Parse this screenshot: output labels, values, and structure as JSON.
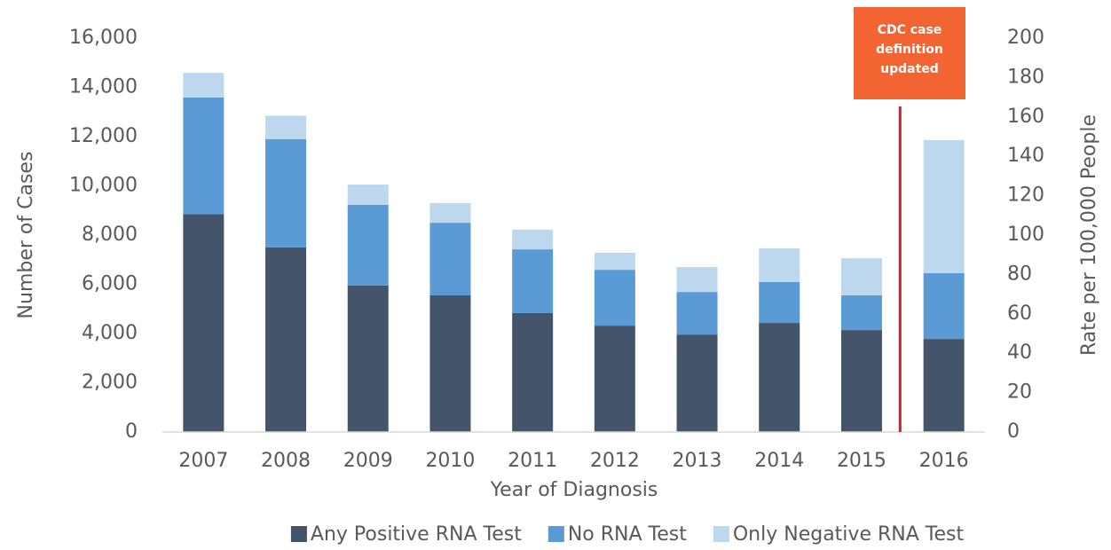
{
  "chart_data": {
    "type": "bar",
    "stacked": true,
    "categories": [
      "2007",
      "2008",
      "2009",
      "2010",
      "2011",
      "2012",
      "2013",
      "2014",
      "2015",
      "2016"
    ],
    "series": [
      {
        "name": "Any Positive RNA Test",
        "color": "#44546a",
        "values": [
          8850,
          7500,
          5950,
          5550,
          4830,
          4320,
          3960,
          4430,
          4140,
          3780
        ]
      },
      {
        "name": "No RNA Test",
        "color": "#5b9bd5",
        "values": [
          4740,
          4400,
          3280,
          2950,
          2590,
          2270,
          1730,
          1660,
          1410,
          2670
        ]
      },
      {
        "name": "Only Negative RNA Test",
        "color": "#bdd7ee",
        "values": [
          1000,
          950,
          820,
          800,
          800,
          690,
          1010,
          1370,
          1510,
          5410
        ]
      }
    ],
    "xlabel": "Year of Diagnosis",
    "ylabel": "Number of Cases",
    "y2label": "Rate per 100,000 People",
    "ylim": [
      0,
      16000
    ],
    "yticks": [
      0,
      {
        "value": 2000,
        "label": "2,000"
      },
      {
        "value": 4000,
        "label": "4,000"
      },
      {
        "value": 6000,
        "label": "6,000"
      },
      {
        "value": 8000,
        "label": "8,000"
      },
      {
        "value": 10000,
        "label": "10,000"
      },
      {
        "value": 12000,
        "label": "12,000"
      },
      {
        "value": 14000,
        "label": "14,000"
      },
      {
        "value": 16000,
        "label": "16,000"
      }
    ],
    "y2lim": [
      0,
      200
    ],
    "y2ticks": [
      0,
      20,
      40,
      60,
      80,
      100,
      120,
      140,
      160,
      180,
      200
    ],
    "annotation_lines": [
      "CDC case",
      "definition",
      "updated"
    ],
    "annotation_color": "#f26532",
    "marker_line_color": "#c0272d",
    "legend": "bottom"
  }
}
